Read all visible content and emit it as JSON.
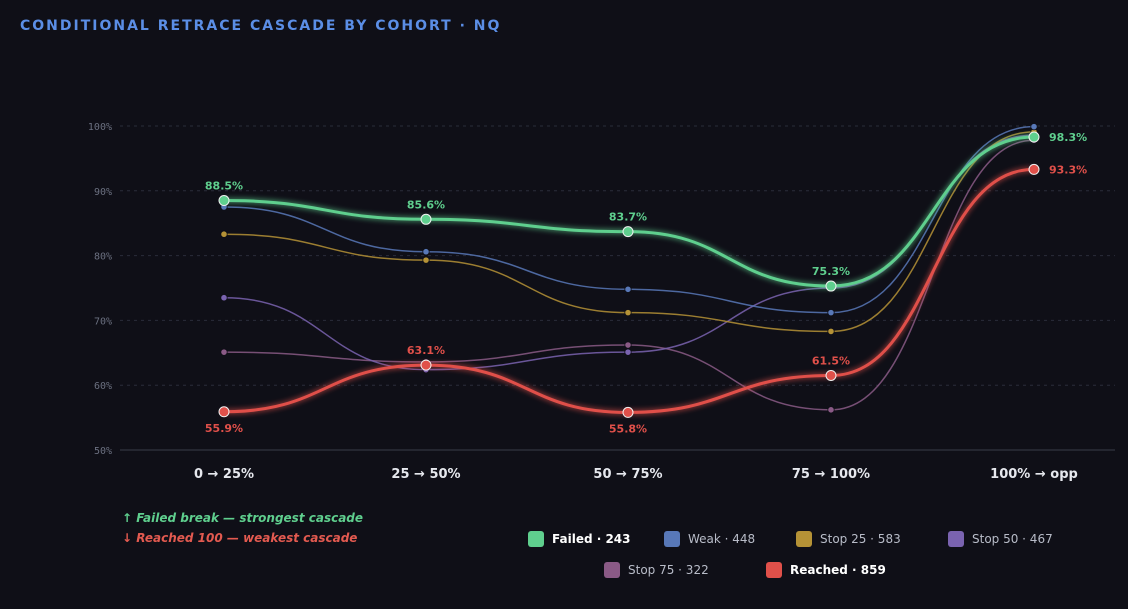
{
  "title": "CONDITIONAL RETRACE CASCADE BY COHORT · NQ",
  "notes": {
    "up": "↑ Failed break — strongest cascade",
    "down": "↓ Reached 100 — weakest cascade"
  },
  "chart_data": {
    "type": "line",
    "categories": [
      "0 → 25%",
      "25 → 50%",
      "50 → 75%",
      "75 → 100%",
      "100% → opp"
    ],
    "ylim": [
      50,
      100
    ],
    "yticks": [
      "50%",
      "60%",
      "70%",
      "80%",
      "90%",
      "100%"
    ],
    "grid": true,
    "series": [
      {
        "name": "Stop 75 · 322",
        "color": "#8a5a86",
        "values": [
          65.1,
          63.6,
          66.2,
          56.2,
          97.8
        ],
        "highlight": false
      },
      {
        "name": "Stop 50 · 467",
        "color": "#7a63b0",
        "values": [
          73.5,
          62.4,
          65.1,
          75.0,
          98.6
        ],
        "highlight": false
      },
      {
        "name": "Stop 25 · 583",
        "color": "#b59236",
        "values": [
          83.3,
          79.3,
          71.2,
          68.3,
          99.1
        ],
        "highlight": false
      },
      {
        "name": "Weak · 448",
        "color": "#5878b8",
        "values": [
          87.5,
          80.6,
          74.8,
          71.2,
          99.9
        ],
        "highlight": false
      },
      {
        "name": "Reached · 859",
        "color": "#e0504a",
        "values": [
          55.9,
          63.1,
          55.8,
          61.5,
          93.3
        ],
        "highlight": true,
        "labels": [
          "55.9%",
          "63.1%",
          "55.8%",
          "61.5%",
          "93.3%"
        ]
      },
      {
        "name": "Failed · 243",
        "color": "#5fcf8e",
        "values": [
          88.5,
          85.6,
          83.7,
          75.3,
          98.3
        ],
        "highlight": true,
        "labels": [
          "88.5%",
          "85.6%",
          "83.7%",
          "75.3%",
          "98.3%"
        ]
      }
    ]
  },
  "legend": [
    {
      "label": "Failed · 243",
      "color": "#5fcf8e",
      "bold": true
    },
    {
      "label": "Weak · 448",
      "color": "#5878b8",
      "bold": false
    },
    {
      "label": "Stop 25 · 583",
      "color": "#b59236",
      "bold": false
    },
    {
      "label": "Stop 50 · 467",
      "color": "#7a63b0",
      "bold": false
    },
    {
      "label": "Stop 75 · 322",
      "color": "#8a5a86",
      "bold": false
    },
    {
      "label": "Reached · 859",
      "color": "#e0504a",
      "bold": true
    }
  ]
}
